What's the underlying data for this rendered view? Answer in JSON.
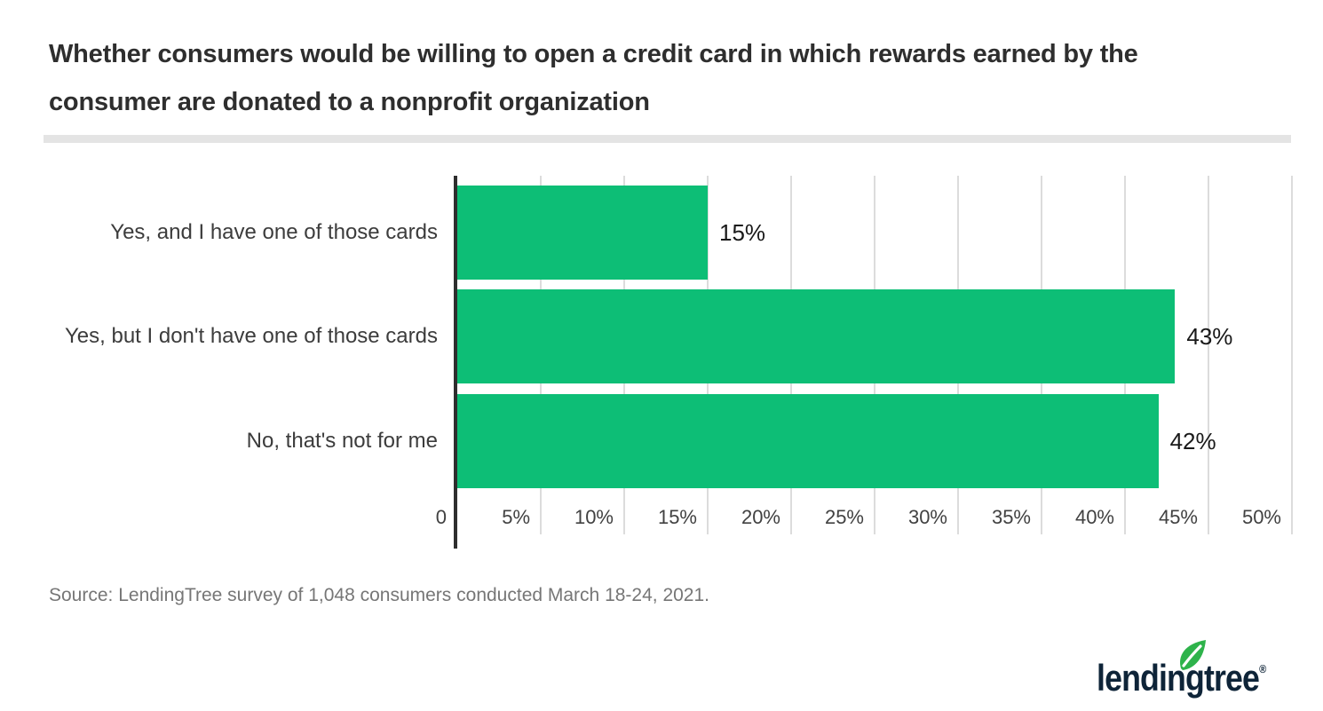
{
  "title": "Whether consumers would be willing to open a credit card in which rewards earned by the\nconsumer are donated to a nonprofit organization",
  "source": "Source: LendingTree survey of 1,048 consumers conducted March 18-24, 2021.",
  "logo": {
    "text": "lendingtree",
    "registered": "®",
    "leaf_icon": "leaf-icon"
  },
  "colors": {
    "bar": "#0dbe76",
    "axis_line": "#2e2e2e",
    "gridline": "#dcdcdc",
    "title_text": "#2e2e2e",
    "category_text": "#3c3c3c",
    "value_text": "#191919",
    "tick_text": "#414141",
    "source_text": "#767676",
    "divider": "#e4e4e4",
    "logo_navy": "#0e2438",
    "leaf_green": "#2eb34b"
  },
  "chart_data": {
    "type": "bar",
    "orientation": "horizontal",
    "title": "Whether consumers would be willing to open a credit card in which rewards earned by the consumer are donated to a nonprofit organization",
    "categories": [
      "Yes, and I have one of those cards",
      "Yes, but I don't have one of those cards",
      "No, that's not for me"
    ],
    "values": [
      15,
      43,
      42
    ],
    "value_labels": [
      "15%",
      "43%",
      "42%"
    ],
    "xlabel": "",
    "ylabel": "",
    "xlim": [
      0,
      50
    ],
    "x_tick_values": [
      0,
      5,
      10,
      15,
      20,
      25,
      30,
      35,
      40,
      45,
      50
    ],
    "x_ticks": [
      "0",
      "5%",
      "10%",
      "15%",
      "20%",
      "25%",
      "30%",
      "35%",
      "40%",
      "45%",
      "50%"
    ],
    "grid": true,
    "legend": false,
    "bar_color": "#0dbe76"
  }
}
